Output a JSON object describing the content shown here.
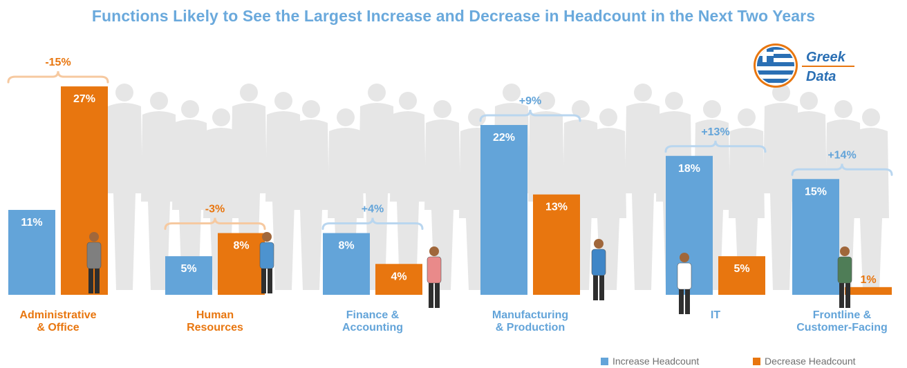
{
  "title": "Functions Likely to See the Largest Increase and Decrease in Headcount in the Next Two Years",
  "logo": {
    "line1": "Greek",
    "line2": "Data"
  },
  "colors": {
    "increase": "#63a4d9",
    "decrease": "#e8760f",
    "title": "#6aa9dc",
    "silhouette": "#e6e6e6"
  },
  "legend": {
    "increase_label": "Increase Headcount",
    "decrease_label": "Decrease Headcount"
  },
  "chart_data": {
    "type": "bar",
    "title": "Functions Likely to See the Largest Increase and Decrease in Headcount in the Next Two Years",
    "categories": [
      [
        "Administrative",
        "& Office"
      ],
      [
        "Human",
        "Resources"
      ],
      [
        "Finance &",
        "Accounting"
      ],
      [
        "Manufacturing",
        "& Production"
      ],
      [
        "IT"
      ],
      [
        "Frontline &",
        "Customer-Facing"
      ]
    ],
    "series": [
      {
        "name": "Increase Headcount",
        "values": [
          11,
          5,
          8,
          22,
          18,
          15
        ]
      },
      {
        "name": "Decrease Headcount",
        "values": [
          27,
          8,
          4,
          13,
          5,
          1
        ]
      }
    ],
    "net_labels": [
      "-15%",
      "-3%",
      "+4%",
      "+9%",
      "+13%",
      "+14%"
    ],
    "ylim": [
      0,
      30
    ],
    "grid": false,
    "legend_position": "bottom-right"
  }
}
